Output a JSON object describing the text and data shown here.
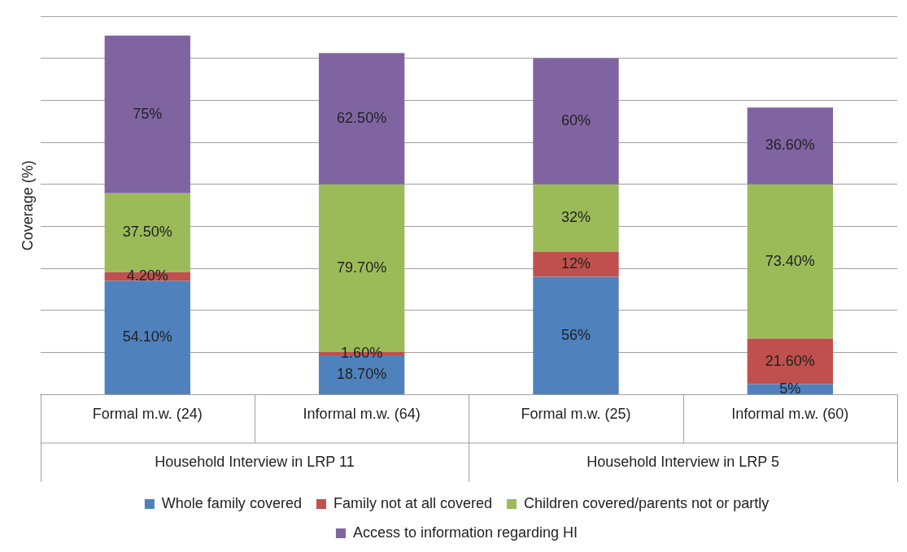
{
  "chart_data": {
    "type": "bar",
    "stacked": true,
    "ylabel": "Coverage (%)",
    "categories": [
      "Formal m.w. (24)",
      "Informal m.w. (64)",
      "Formal m.w. (25)",
      "Informal m.w. (60)"
    ],
    "annotations": [
      "Household Interview in LRP 11",
      "Household Interview in LRP 5"
    ],
    "series": [
      {
        "name": "Whole family covered",
        "color": "#4f81bd",
        "values": [
          54.1,
          18.7,
          56,
          5
        ],
        "value_labels": [
          "54.10%",
          "18.70%",
          "56%",
          "5%"
        ]
      },
      {
        "name": "Family not at all covered",
        "color": "#c0504d",
        "values": [
          4.2,
          1.6,
          12,
          21.6
        ],
        "value_labels": [
          "4.20%",
          "1.60%",
          "12%",
          "21.60%"
        ]
      },
      {
        "name": "Children covered/parents not or partly",
        "color": "#9bbb59",
        "values": [
          37.5,
          79.7,
          32,
          73.4
        ],
        "value_labels": [
          "37.50%",
          "79.70%",
          "32%",
          "73.40%"
        ]
      },
      {
        "name": "Access to information regarding HI",
        "color": "#8064a2",
        "values": [
          75,
          62.5,
          60,
          36.6
        ],
        "value_labels": [
          "75%",
          "62.50%",
          "60%",
          "36.60%"
        ]
      }
    ],
    "ylim": [
      0,
      180
    ],
    "yticks": [
      {
        "value": 0,
        "label": null
      },
      {
        "value": 20,
        "label": null
      },
      {
        "value": 40,
        "label": null
      },
      {
        "value": 60,
        "label": null
      },
      {
        "value": 80,
        "label": null
      },
      {
        "value": 100,
        "label": null
      },
      {
        "value": 120,
        "label": null
      },
      {
        "value": 140,
        "label": null
      },
      {
        "value": 160,
        "label": null
      },
      {
        "value": 180,
        "label": null
      }
    ],
    "grid": true,
    "legend": "bottom",
    "tick_labels": "x"
  }
}
